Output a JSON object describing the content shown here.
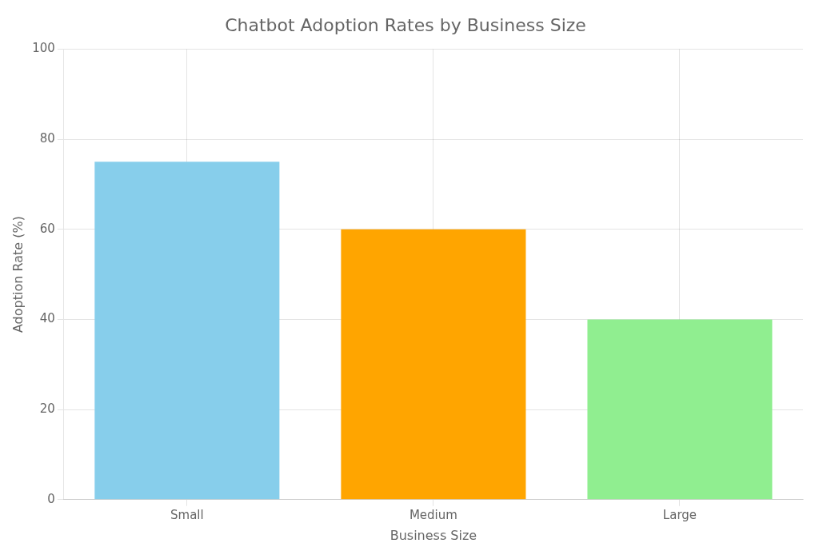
{
  "chart_data": {
    "type": "bar",
    "title": "Chatbot Adoption Rates by Business Size",
    "xlabel": "Business Size",
    "ylabel": "Adoption Rate (%)",
    "categories": [
      "Small",
      "Medium",
      "Large"
    ],
    "values": [
      75,
      60,
      40
    ],
    "colors": [
      "#87CEEB",
      "#FFA500",
      "#90EE90"
    ],
    "ylim": [
      0,
      100
    ],
    "yticks": [
      0,
      20,
      40,
      60,
      80,
      100
    ],
    "grid": true
  }
}
